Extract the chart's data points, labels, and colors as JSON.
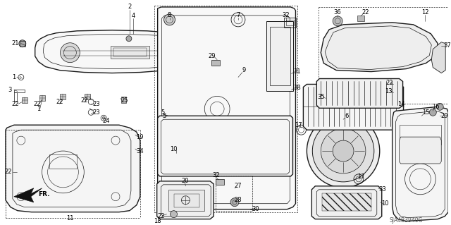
{
  "diagram_code": "SJA4B3940G",
  "background_color": "#ffffff",
  "line_color": "#1a1a1a",
  "fig_width": 6.4,
  "fig_height": 3.19,
  "dpi": 100
}
